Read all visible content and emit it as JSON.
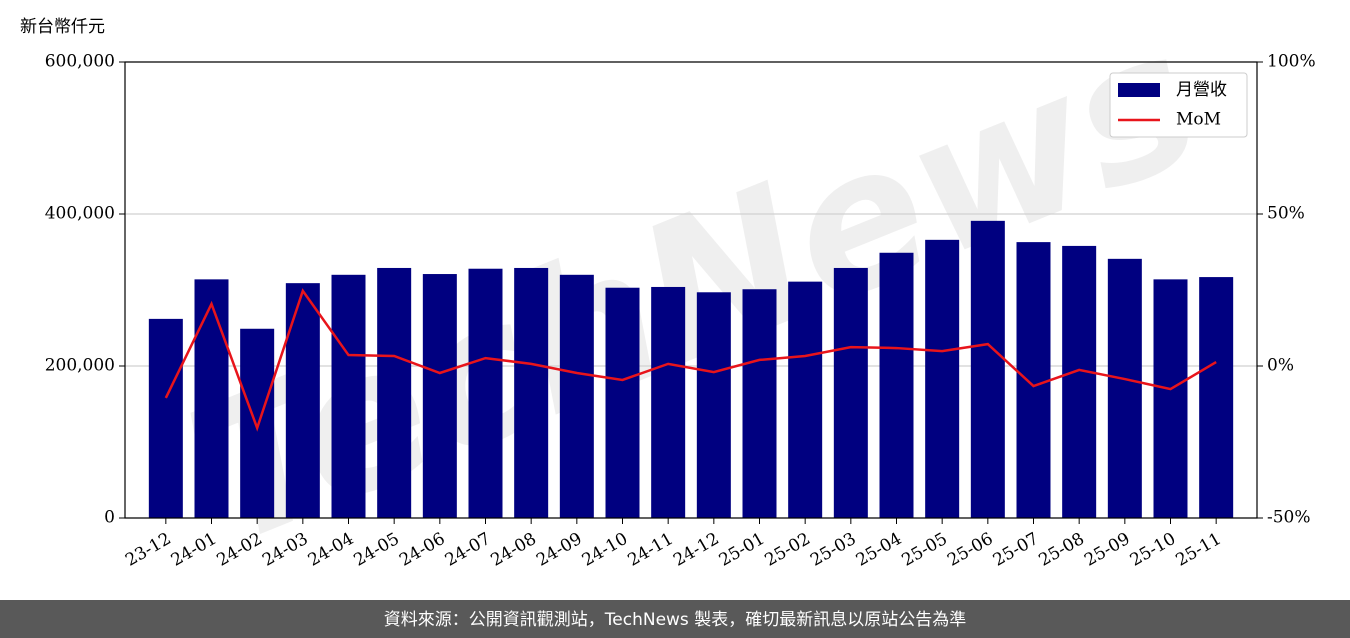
{
  "chart_data": {
    "type": "bar-line",
    "y_label": "新台幣仟元",
    "footer": "資料來源：公開資訊觀測站，TechNews 製表，確切最新訊息以原站公告為準",
    "watermark": "TechNews",
    "categories": [
      "23-12",
      "24-01",
      "24-02",
      "24-03",
      "24-04",
      "24-05",
      "24-06",
      "24-07",
      "24-08",
      "24-09",
      "24-10",
      "24-11",
      "24-12",
      "25-01",
      "25-02",
      "25-03",
      "25-04",
      "25-05",
      "25-06",
      "25-07",
      "25-08",
      "25-09",
      "25-10",
      "25-11"
    ],
    "series": [
      {
        "name": "月營收",
        "color": "#000080",
        "values": [
          262000,
          314000,
          249000,
          309000,
          320000,
          329000,
          321000,
          328000,
          329000,
          320000,
          303000,
          304000,
          297000,
          301000,
          311000,
          329000,
          349000,
          366000,
          391000,
          363000,
          358000,
          341000,
          314000,
          317000
        ]
      },
      {
        "name": "MoM",
        "color": "#e8141b",
        "axis": "y2",
        "values": [
          -10.5,
          20.4,
          -20.4,
          24.7,
          3.6,
          3.3,
          -2.3,
          2.6,
          0.7,
          -2.3,
          -4.6,
          0.7,
          -2.0,
          2.0,
          3.3,
          6.2,
          5.9,
          4.9,
          7.2,
          -6.6,
          -1.3,
          -4.3,
          -7.6,
          1.3
        ]
      }
    ],
    "ylim": [
      0,
      600000
    ],
    "yticks": [
      0,
      {
        "value": 200000,
        "label": "200,000"
      },
      {
        "value": 400000,
        "label": "400,000"
      },
      {
        "value": 600000,
        "label": "600,000"
      }
    ],
    "y2lim": [
      -50,
      100
    ],
    "y2ticks": [
      {
        "value": -50,
        "label": "-50%"
      },
      {
        "value": 0,
        "label": "0%"
      },
      {
        "value": 50,
        "label": "50%"
      },
      {
        "value": 100,
        "label": "100%"
      }
    ],
    "grid": true,
    "legend": "upper right"
  }
}
